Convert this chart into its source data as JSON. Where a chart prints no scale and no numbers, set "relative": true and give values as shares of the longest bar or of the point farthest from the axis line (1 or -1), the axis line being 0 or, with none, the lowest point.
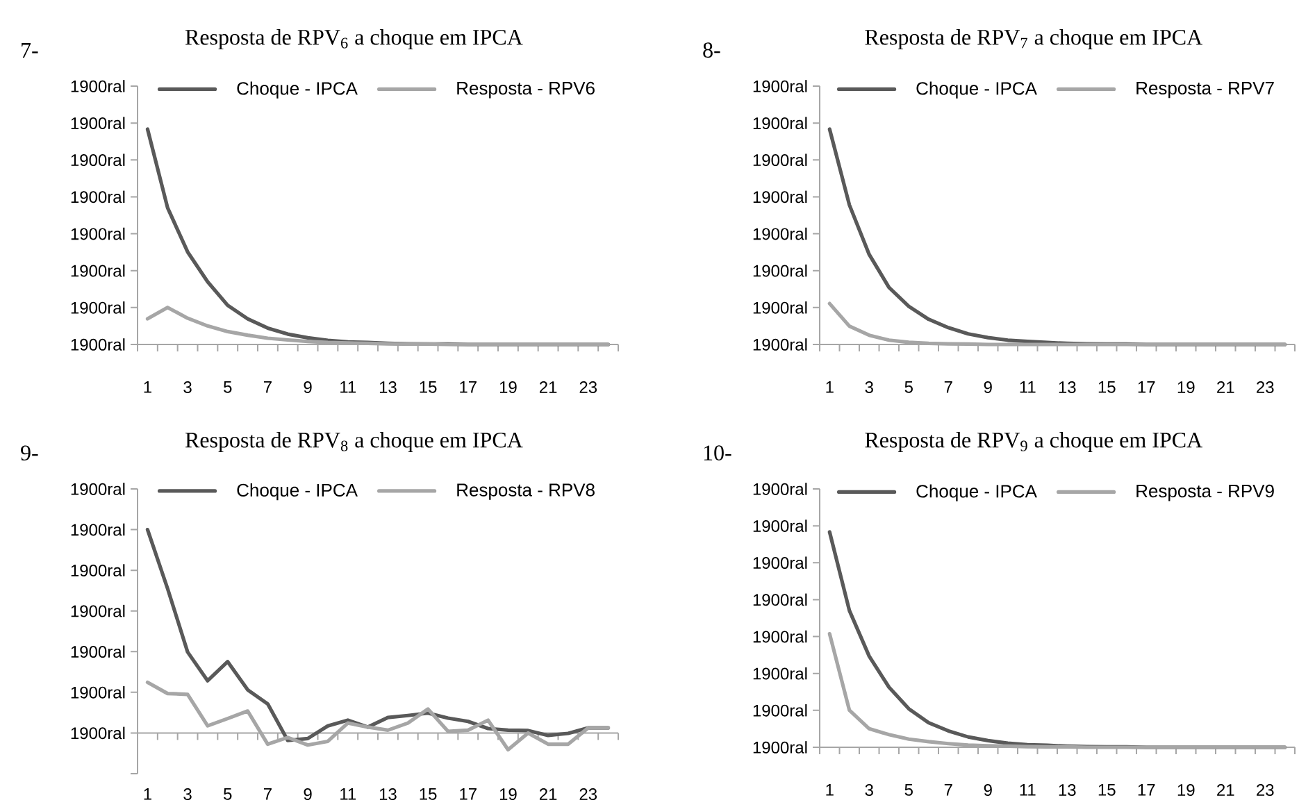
{
  "chart_data": [
    {
      "type": "line",
      "title": "Resposta de RPV$_{6}$ a choque em IPCA",
      "annotations": [
        "7-",
        "1900ral",
        "1900ral",
        "1900ral",
        "1900ral",
        "1900ral",
        "1900ral",
        "1900ral",
        "1900ral"
      ],
      "categories": [
        "1",
        null,
        "3",
        null,
        "5",
        null,
        "7",
        null,
        "9",
        null,
        "11",
        null,
        "13",
        null,
        "15",
        null,
        "17",
        null,
        "19",
        null,
        "21",
        null,
        "23",
        null
      ],
      "relative": true,
      "series": [
        {
          "name": "Choque - IPCA",
          "color": "#595959",
          "values": [
            1,
            0.635,
            0.43,
            0.291,
            0.182,
            0.119,
            0.076,
            0.048,
            0.031,
            0.019,
            0.012,
            0.009,
            0.005,
            0.003,
            0.002,
            0.002,
            0,
            0,
            0,
            0,
            0,
            0,
            0,
            0
          ]
        },
        {
          "name": "Resposta - RPV6",
          "color": "#a6a6a6",
          "values": [
            0.119,
            0.172,
            0.122,
            0.086,
            0.06,
            0.043,
            0.029,
            0.021,
            0.014,
            0.009,
            0.007,
            0.005,
            0.003,
            0.002,
            0.002,
            0,
            0,
            0,
            0,
            0,
            0,
            0,
            0,
            0
          ]
        }
      ],
      "legend": "top",
      "marker": "none",
      "line_style": "solid"
    },
    {
      "type": "line",
      "title": "Resposta de RPV$_{7}$ a choque em IPCA",
      "annotations": [
        "8-",
        "1900ral",
        "1900ral",
        "1900ral",
        "1900ral",
        "1900ral",
        "1900ral",
        "1900ral",
        "1900ral"
      ],
      "categories": [
        "1",
        null,
        "3",
        null,
        "5",
        null,
        "7",
        null,
        "9",
        null,
        "11",
        null,
        "13",
        null,
        "15",
        null,
        "17",
        null,
        "19",
        null,
        "21",
        null,
        "23",
        null
      ],
      "relative": true,
      "series": [
        {
          "name": "Choque - IPCA",
          "color": "#595959",
          "values": [
            1,
            0.648,
            0.418,
            0.265,
            0.177,
            0.117,
            0.078,
            0.049,
            0.032,
            0.02,
            0.014,
            0.009,
            0.005,
            0.003,
            0.002,
            0.002,
            0,
            0,
            0,
            0,
            0,
            0,
            0,
            0
          ]
        },
        {
          "name": "Resposta - RPV7",
          "color": "#a6a6a6",
          "values": [
            0.19,
            0.085,
            0.043,
            0.02,
            0.01,
            0.005,
            0.003,
            0.002,
            0,
            0,
            0,
            0,
            0,
            0,
            0,
            0,
            0,
            0,
            0,
            0,
            0,
            0,
            0,
            0
          ]
        }
      ],
      "legend": "top",
      "marker": "none",
      "line_style": "solid"
    },
    {
      "type": "line",
      "title": "Resposta de RPV$_{8}$ a choque em IPCA",
      "annotations": [
        "9-",
        "1900ral",
        "1900ral",
        "1900ral",
        "1900ral",
        "1900ral",
        "1900ral",
        "1900ral"
      ],
      "categories": [
        "1",
        null,
        "3",
        null,
        "5",
        null,
        "7",
        null,
        "9",
        null,
        "11",
        null,
        "13",
        null,
        "15",
        null,
        "17",
        null,
        "19",
        null,
        "21",
        null,
        "23",
        null
      ],
      "relative": true,
      "series": [
        {
          "name": "Choque - IPCA",
          "color": "#595959",
          "values": [
            1,
            0.71,
            0.398,
            0.257,
            0.351,
            0.212,
            0.143,
            -0.037,
            -0.027,
            0.035,
            0.063,
            0.029,
            0.076,
            0.086,
            0.098,
            0.073,
            0.057,
            0.022,
            0.014,
            0.012,
            -0.012,
            -0.002,
            0.025,
            0.025
          ]
        },
        {
          "name": "Resposta - RPV8",
          "color": "#a6a6a6",
          "values": [
            0.249,
            0.194,
            0.19,
            0.035,
            0.071,
            0.108,
            -0.055,
            -0.022,
            -0.059,
            -0.041,
            0.049,
            0.029,
            0.014,
            0.049,
            0.118,
            0.008,
            0.014,
            0.063,
            -0.082,
            0,
            -0.055,
            -0.055,
            0.025,
            0.025
          ]
        }
      ],
      "legend": "top",
      "marker": "none",
      "line_style": "solid"
    },
    {
      "type": "line",
      "title": "Resposta de RPV$_{9}$ a choque em IPCA",
      "annotations": [
        "10-",
        "1900ral",
        "1900ral",
        "1900ral",
        "1900ral",
        "1900ral",
        "1900ral",
        "1900ral",
        "1900ral"
      ],
      "categories": [
        "1",
        null,
        "3",
        null,
        "5",
        null,
        "7",
        null,
        "9",
        null,
        "11",
        null,
        "13",
        null,
        "15",
        null,
        "17",
        null,
        "19",
        null,
        "21",
        null,
        "23",
        null
      ],
      "relative": true,
      "series": [
        {
          "name": "Choque - IPCA",
          "color": "#595959",
          "values": [
            1,
            0.635,
            0.423,
            0.279,
            0.179,
            0.114,
            0.076,
            0.048,
            0.031,
            0.019,
            0.012,
            0.009,
            0.005,
            0.003,
            0.002,
            0.002,
            0,
            0,
            0,
            0,
            0,
            0,
            0,
            0
          ]
        },
        {
          "name": "Resposta - RPV9",
          "color": "#a6a6a6",
          "values": [
            0.527,
            0.172,
            0.086,
            0.059,
            0.038,
            0.026,
            0.017,
            0.01,
            0.007,
            0.005,
            0.003,
            0.002,
            0.002,
            0,
            0,
            0,
            0,
            0,
            0,
            0,
            0,
            0,
            0,
            0
          ]
        }
      ],
      "legend": "top",
      "marker": "none",
      "line_style": "solid"
    }
  ]
}
